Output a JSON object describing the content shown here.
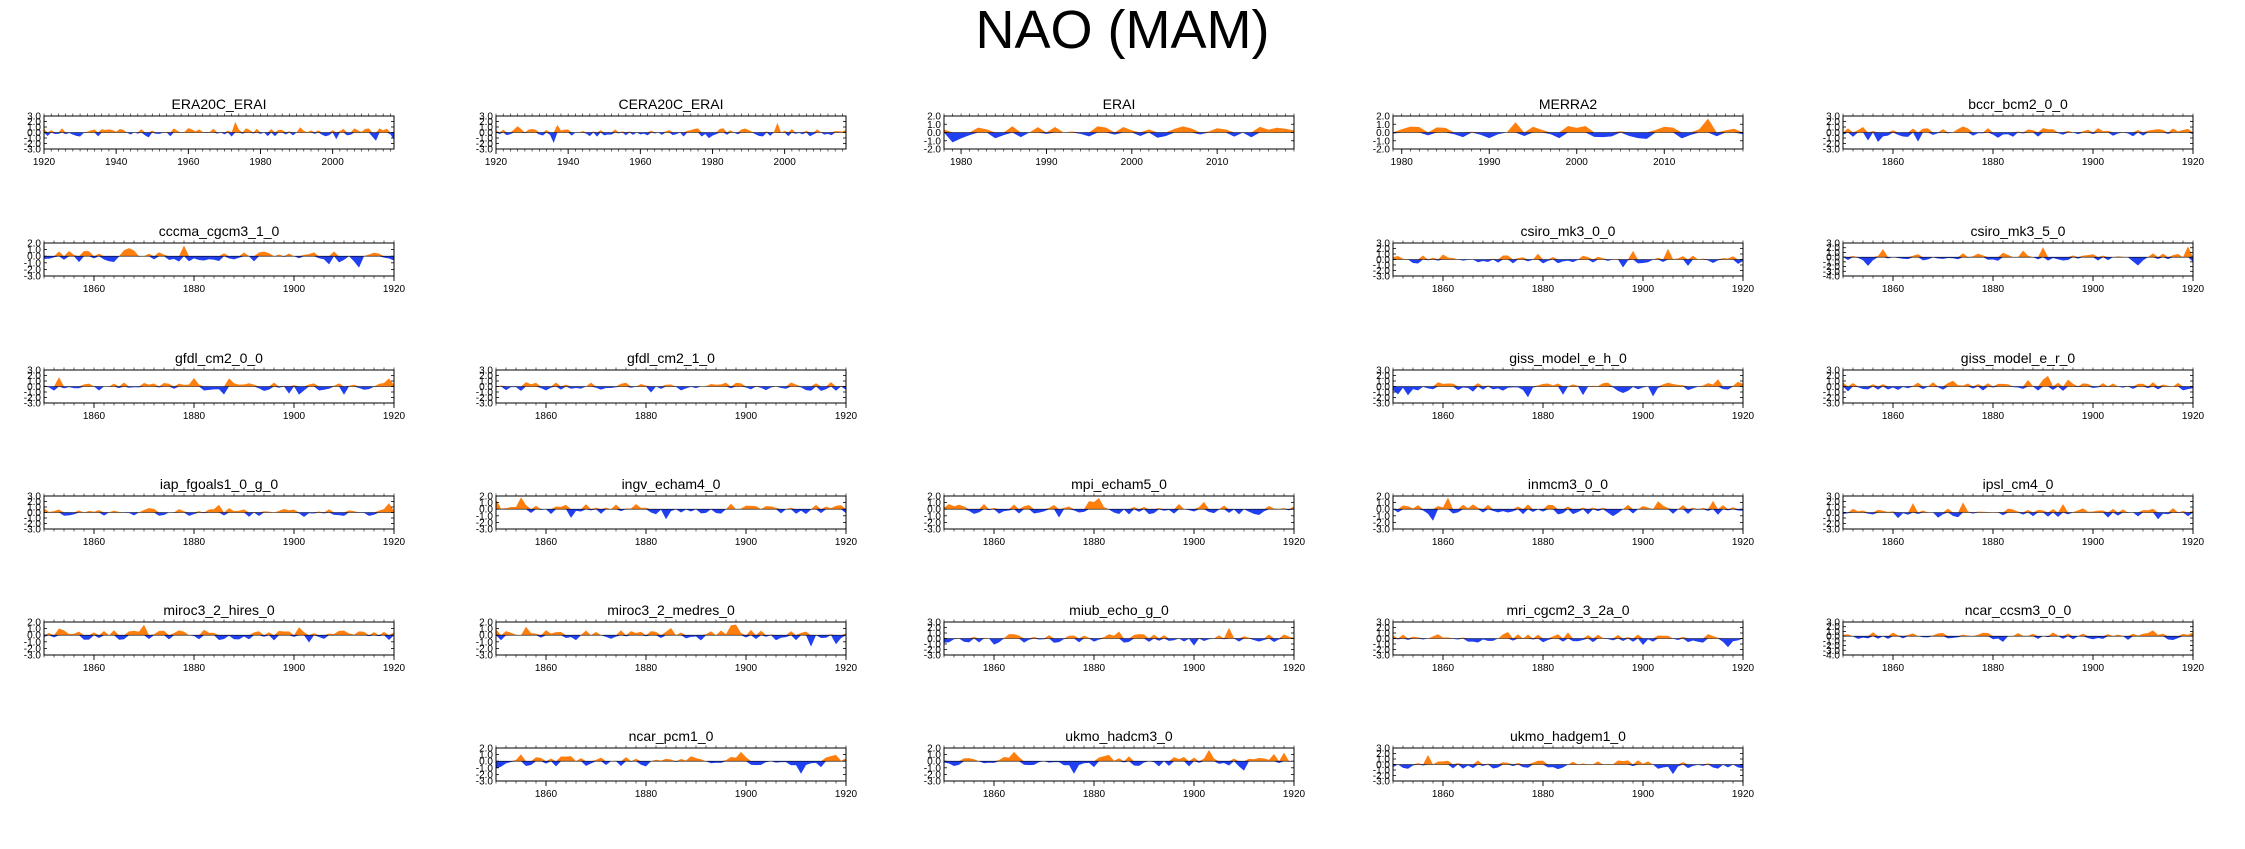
{
  "title": "NAO (MAM)",
  "colors": {
    "positive": "#ff7f0e",
    "negative": "#1f3ff0",
    "axis": "#000000"
  },
  "chart_data": [
    {
      "type": "area",
      "title": "ERA20C_ERAI",
      "row": 0,
      "col": 0,
      "xlim": [
        1920,
        2017
      ],
      "ylim": [
        -3,
        3
      ],
      "yticks": [
        "3.0",
        "2.0",
        "1.0",
        "0.0",
        "-1.0",
        "-2.0",
        "-3.0"
      ],
      "xticks": [
        1920,
        1940,
        1960,
        1980,
        2000
      ],
      "seed": 11
    },
    {
      "type": "area",
      "title": "CERA20C_ERAI",
      "row": 0,
      "col": 1,
      "xlim": [
        1920,
        2017
      ],
      "ylim": [
        -3,
        3
      ],
      "yticks": [
        "3.0",
        "2.0",
        "1.0",
        "0.0",
        "-1.0",
        "-2.0",
        "-3.0"
      ],
      "xticks": [
        1920,
        1940,
        1960,
        1980,
        2000
      ],
      "seed": 12
    },
    {
      "type": "area",
      "title": "ERAI",
      "row": 0,
      "col": 2,
      "xlim": [
        1978,
        2019
      ],
      "ylim": [
        -2,
        2
      ],
      "yticks": [
        "2.0",
        "1.0",
        "0.0",
        "-1.0",
        "-2.0"
      ],
      "xticks": [
        1980,
        1990,
        2000,
        2010
      ],
      "seed": 13
    },
    {
      "type": "area",
      "title": "MERRA2",
      "row": 0,
      "col": 3,
      "xlim": [
        1979,
        2019
      ],
      "ylim": [
        -2,
        2
      ],
      "yticks": [
        "2.0",
        "1.0",
        "0.0",
        "-1.0",
        "-2.0"
      ],
      "xticks": [
        1980,
        1990,
        2000,
        2010
      ],
      "seed": 14
    },
    {
      "type": "area",
      "title": "bccr_bcm2_0_0",
      "row": 0,
      "col": 4,
      "xlim": [
        1850,
        1920
      ],
      "ylim": [
        -3,
        3
      ],
      "yticks": [
        "3.0",
        "2.0",
        "1.0",
        "0.0",
        "-1.0",
        "-2.0",
        "-3.0"
      ],
      "xticks": [
        1860,
        1880,
        1900,
        1920
      ],
      "seed": 15
    },
    {
      "type": "area",
      "title": "cccma_cgcm3_1_0",
      "row": 1,
      "col": 0,
      "xlim": [
        1850,
        1920
      ],
      "ylim": [
        -3,
        2
      ],
      "yticks": [
        "2.0",
        "1.0",
        "0.0",
        "-1.0",
        "-2.0",
        "-3.0"
      ],
      "xticks": [
        1860,
        1880,
        1900,
        1920
      ],
      "seed": 21
    },
    {
      "type": "area",
      "title": "csiro_mk3_0_0",
      "row": 1,
      "col": 3,
      "xlim": [
        1850,
        1920
      ],
      "ylim": [
        -3,
        3
      ],
      "yticks": [
        "3.0",
        "2.0",
        "1.0",
        "0.0",
        "-1.0",
        "-2.0",
        "-3.0"
      ],
      "xticks": [
        1860,
        1880,
        1900,
        1920
      ],
      "seed": 24
    },
    {
      "type": "area",
      "title": "csiro_mk3_5_0",
      "row": 1,
      "col": 4,
      "xlim": [
        1850,
        1920
      ],
      "ylim": [
        -4,
        3
      ],
      "yticks": [
        "3.0",
        "2.0",
        "1.0",
        "0.0",
        "-1.0",
        "-2.0",
        "-3.0",
        "-4.0"
      ],
      "xticks": [
        1860,
        1880,
        1900,
        1920
      ],
      "seed": 25
    },
    {
      "type": "area",
      "title": "gfdl_cm2_0_0",
      "row": 2,
      "col": 0,
      "xlim": [
        1850,
        1920
      ],
      "ylim": [
        -3,
        3
      ],
      "yticks": [
        "3.0",
        "2.0",
        "1.0",
        "0.0",
        "-1.0",
        "-2.0",
        "-3.0"
      ],
      "xticks": [
        1860,
        1880,
        1900,
        1920
      ],
      "seed": 31
    },
    {
      "type": "area",
      "title": "gfdl_cm2_1_0",
      "row": 2,
      "col": 1,
      "xlim": [
        1850,
        1920
      ],
      "ylim": [
        -3,
        3
      ],
      "yticks": [
        "3.0",
        "2.0",
        "1.0",
        "0.0",
        "-1.0",
        "-2.0",
        "-3.0"
      ],
      "xticks": [
        1860,
        1880,
        1900,
        1920
      ],
      "seed": 32
    },
    {
      "type": "area",
      "title": "giss_model_e_h_0",
      "row": 2,
      "col": 3,
      "xlim": [
        1850,
        1920
      ],
      "ylim": [
        -3,
        3
      ],
      "yticks": [
        "3.0",
        "2.0",
        "1.0",
        "0.0",
        "-1.0",
        "-2.0",
        "-3.0"
      ],
      "xticks": [
        1860,
        1880,
        1900,
        1920
      ],
      "seed": 34
    },
    {
      "type": "area",
      "title": "giss_model_e_r_0",
      "row": 2,
      "col": 4,
      "xlim": [
        1850,
        1920
      ],
      "ylim": [
        -3,
        3
      ],
      "yticks": [
        "3.0",
        "2.0",
        "1.0",
        "0.0",
        "-1.0",
        "-2.0",
        "-3.0"
      ],
      "xticks": [
        1860,
        1880,
        1900,
        1920
      ],
      "seed": 35
    },
    {
      "type": "area",
      "title": "iap_fgoals1_0_g_0",
      "row": 3,
      "col": 0,
      "xlim": [
        1850,
        1920
      ],
      "ylim": [
        -3,
        3
      ],
      "yticks": [
        "3.0",
        "2.0",
        "1.0",
        "0.0",
        "-1.0",
        "-2.0",
        "-3.0"
      ],
      "xticks": [
        1860,
        1880,
        1900,
        1920
      ],
      "seed": 41
    },
    {
      "type": "area",
      "title": "ingv_echam4_0",
      "row": 3,
      "col": 1,
      "xlim": [
        1850,
        1920
      ],
      "ylim": [
        -3,
        2
      ],
      "yticks": [
        "2.0",
        "1.0",
        "0.0",
        "-1.0",
        "-2.0",
        "-3.0"
      ],
      "xticks": [
        1860,
        1880,
        1900,
        1920
      ],
      "seed": 42
    },
    {
      "type": "area",
      "title": "mpi_echam5_0",
      "row": 3,
      "col": 2,
      "xlim": [
        1850,
        1920
      ],
      "ylim": [
        -3,
        2
      ],
      "yticks": [
        "2.0",
        "1.0",
        "0.0",
        "-1.0",
        "-2.0",
        "-3.0"
      ],
      "xticks": [
        1860,
        1880,
        1900,
        1920
      ],
      "seed": 43
    },
    {
      "type": "area",
      "title": "inmcm3_0_0",
      "row": 3,
      "col": 3,
      "xlim": [
        1850,
        1920
      ],
      "ylim": [
        -3,
        2
      ],
      "yticks": [
        "2.0",
        "1.0",
        "0.0",
        "-1.0",
        "-2.0",
        "-3.0"
      ],
      "xticks": [
        1860,
        1880,
        1900,
        1920
      ],
      "seed": 44
    },
    {
      "type": "area",
      "title": "ipsl_cm4_0",
      "row": 3,
      "col": 4,
      "xlim": [
        1850,
        1920
      ],
      "ylim": [
        -3,
        3
      ],
      "yticks": [
        "3.0",
        "2.0",
        "1.0",
        "0.0",
        "-1.0",
        "-2.0",
        "-3.0"
      ],
      "xticks": [
        1860,
        1880,
        1900,
        1920
      ],
      "seed": 45
    },
    {
      "type": "area",
      "title": "miroc3_2_hires_0",
      "row": 4,
      "col": 0,
      "xlim": [
        1850,
        1920
      ],
      "ylim": [
        -3,
        2
      ],
      "yticks": [
        "2.0",
        "1.0",
        "0.0",
        "-1.0",
        "-2.0",
        "-3.0"
      ],
      "xticks": [
        1860,
        1880,
        1900,
        1920
      ],
      "seed": 51
    },
    {
      "type": "area",
      "title": "miroc3_2_medres_0",
      "row": 4,
      "col": 1,
      "xlim": [
        1850,
        1920
      ],
      "ylim": [
        -3,
        2
      ],
      "yticks": [
        "2.0",
        "1.0",
        "0.0",
        "-1.0",
        "-2.0",
        "-3.0"
      ],
      "xticks": [
        1860,
        1880,
        1900,
        1920
      ],
      "seed": 52
    },
    {
      "type": "area",
      "title": "miub_echo_g_0",
      "row": 4,
      "col": 2,
      "xlim": [
        1850,
        1920
      ],
      "ylim": [
        -3,
        3
      ],
      "yticks": [
        "3.0",
        "2.0",
        "1.0",
        "0.0",
        "-1.0",
        "-2.0",
        "-3.0"
      ],
      "xticks": [
        1860,
        1880,
        1900,
        1920
      ],
      "seed": 53
    },
    {
      "type": "area",
      "title": "mri_cgcm2_3_2a_0",
      "row": 4,
      "col": 3,
      "xlim": [
        1850,
        1920
      ],
      "ylim": [
        -3,
        3
      ],
      "yticks": [
        "3.0",
        "2.0",
        "1.0",
        "0.0",
        "-1.0",
        "-2.0",
        "-3.0"
      ],
      "xticks": [
        1860,
        1880,
        1900,
        1920
      ],
      "seed": 54
    },
    {
      "type": "area",
      "title": "ncar_ccsm3_0_0",
      "row": 4,
      "col": 4,
      "xlim": [
        1850,
        1920
      ],
      "ylim": [
        -4,
        3
      ],
      "yticks": [
        "3.0",
        "2.0",
        "1.0",
        "0.0",
        "-1.0",
        "-2.0",
        "-3.0",
        "-4.0"
      ],
      "xticks": [
        1860,
        1880,
        1900,
        1920
      ],
      "seed": 55
    },
    {
      "type": "area",
      "title": "ncar_pcm1_0",
      "row": 5,
      "col": 1,
      "xlim": [
        1850,
        1920
      ],
      "ylim": [
        -3,
        2
      ],
      "yticks": [
        "2.0",
        "1.0",
        "0.0",
        "-1.0",
        "-2.0",
        "-3.0"
      ],
      "xticks": [
        1860,
        1880,
        1900,
        1920
      ],
      "seed": 62
    },
    {
      "type": "area",
      "title": "ukmo_hadcm3_0",
      "row": 5,
      "col": 2,
      "xlim": [
        1850,
        1920
      ],
      "ylim": [
        -3,
        2
      ],
      "yticks": [
        "2.0",
        "1.0",
        "0.0",
        "-1.0",
        "-2.0",
        "-3.0"
      ],
      "xticks": [
        1860,
        1880,
        1900,
        1920
      ],
      "seed": 63
    },
    {
      "type": "area",
      "title": "ukmo_hadgem1_0",
      "row": 5,
      "col": 3,
      "xlim": [
        1850,
        1920
      ],
      "ylim": [
        -3,
        3
      ],
      "yticks": [
        "3.0",
        "2.0",
        "1.0",
        "0.0",
        "-1.0",
        "-2.0",
        "-3.0"
      ],
      "xticks": [
        1860,
        1880,
        1900,
        1920
      ],
      "seed": 64
    }
  ]
}
